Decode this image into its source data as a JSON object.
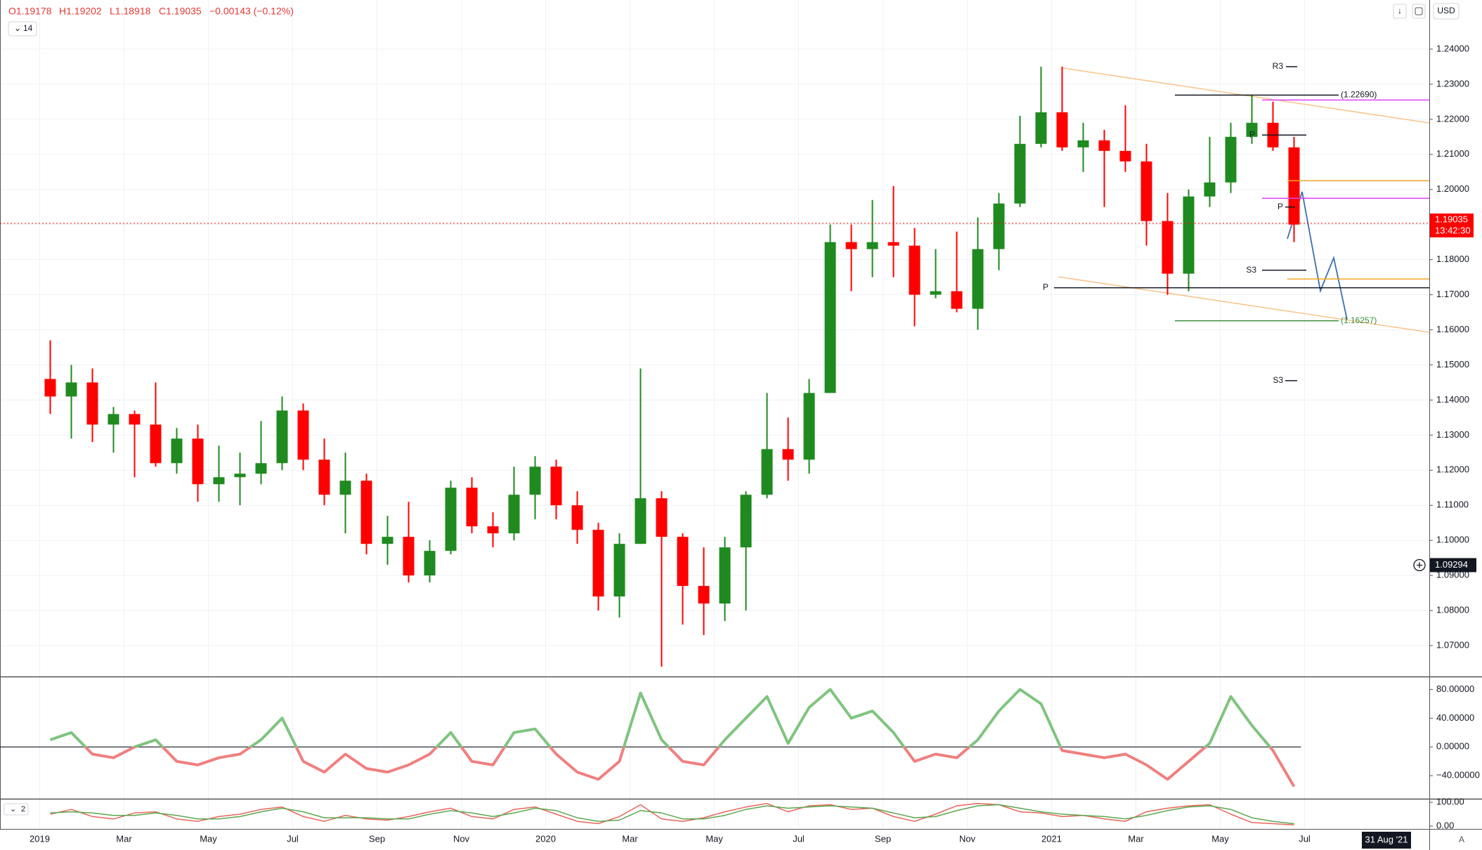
{
  "header": {
    "open": "O1.19178",
    "high": "H1.19202",
    "low": "L1.18918",
    "close": "C1.19035",
    "change": "−0.00143 (−0.12%)",
    "indicator_length": "14",
    "currency": "USD",
    "pane_label": "2",
    "date_label": "31 Aug '21",
    "scale_mode": "A"
  },
  "chart_data": [
    {
      "type": "candlestick",
      "categories": [
        "2019",
        null,
        null,
        null,
        "Mar",
        null,
        null,
        null,
        "May",
        null,
        null,
        null,
        "Jul",
        null,
        null,
        null,
        "Sep",
        null,
        null,
        null,
        "Nov",
        null,
        null,
        null,
        "2020",
        null,
        null,
        null,
        "Mar",
        null,
        null,
        null,
        "May",
        null,
        null,
        null,
        "Jul",
        null,
        null,
        null,
        "Sep",
        null,
        null,
        null,
        "Nov",
        null,
        null,
        null,
        "2021",
        null,
        null,
        null,
        "Mar",
        null,
        null,
        null,
        "May",
        null,
        null,
        null,
        "Jul",
        null
      ],
      "open": [
        1.146,
        1.141,
        1.145,
        1.133,
        1.136,
        1.133,
        1.122,
        1.129,
        1.116,
        1.118,
        1.119,
        1.122,
        1.137,
        1.123,
        1.113,
        1.117,
        1.099,
        1.101,
        1.09,
        1.097,
        1.115,
        1.104,
        1.102,
        1.113,
        1.121,
        1.11,
        1.103,
        1.084,
        1.099,
        1.112,
        1.101,
        1.087,
        1.082,
        1.098,
        1.113,
        1.126,
        1.123,
        1.142,
        1.185,
        1.183,
        1.185,
        1.184,
        1.17,
        1.171,
        1.166,
        1.183,
        1.196,
        1.213,
        1.222,
        1.212,
        1.214,
        1.211,
        1.208,
        1.191,
        1.176,
        1.198,
        1.202,
        1.215,
        1.219,
        1.212,
        null,
        null
      ],
      "high": [
        1.157,
        1.15,
        1.149,
        1.138,
        1.137,
        1.145,
        1.132,
        1.133,
        1.127,
        1.125,
        1.134,
        1.141,
        1.139,
        1.129,
        1.125,
        1.119,
        1.107,
        1.111,
        1.1,
        1.117,
        1.118,
        1.108,
        1.121,
        1.124,
        1.123,
        1.114,
        1.105,
        1.102,
        1.149,
        1.114,
        1.102,
        1.098,
        1.101,
        1.114,
        1.142,
        1.135,
        1.146,
        1.19,
        1.19,
        1.197,
        1.201,
        1.189,
        1.183,
        1.188,
        1.192,
        1.199,
        1.221,
        1.235,
        1.235,
        1.219,
        1.217,
        1.224,
        1.213,
        1.199,
        1.2,
        1.215,
        1.219,
        1.227,
        1.225,
        1.215,
        null,
        null
      ],
      "low": [
        1.136,
        1.129,
        1.128,
        1.125,
        1.118,
        1.121,
        1.119,
        1.111,
        1.111,
        1.11,
        1.116,
        1.12,
        1.12,
        1.11,
        1.102,
        1.096,
        1.093,
        1.088,
        1.088,
        1.096,
        1.102,
        1.098,
        1.1,
        1.106,
        1.106,
        1.099,
        1.08,
        1.078,
        1.099,
        1.064,
        1.076,
        1.073,
        1.077,
        1.08,
        1.112,
        1.117,
        1.119,
        1.142,
        1.171,
        1.175,
        1.175,
        1.161,
        1.169,
        1.165,
        1.16,
        1.177,
        1.195,
        1.212,
        1.211,
        1.205,
        1.195,
        1.205,
        1.184,
        1.17,
        1.171,
        1.195,
        1.199,
        1.213,
        1.211,
        1.185,
        null,
        null
      ],
      "close": [
        1.141,
        1.145,
        1.133,
        1.136,
        1.133,
        1.122,
        1.129,
        1.116,
        1.118,
        1.119,
        1.122,
        1.137,
        1.123,
        1.113,
        1.117,
        1.099,
        1.101,
        1.09,
        1.097,
        1.115,
        1.104,
        1.102,
        1.113,
        1.121,
        1.11,
        1.103,
        1.084,
        1.099,
        1.112,
        1.101,
        1.087,
        1.082,
        1.098,
        1.113,
        1.126,
        1.123,
        1.142,
        1.185,
        1.183,
        1.185,
        1.184,
        1.17,
        1.171,
        1.166,
        1.183,
        1.196,
        1.213,
        1.222,
        1.212,
        1.214,
        1.211,
        1.208,
        1.191,
        1.176,
        1.198,
        1.202,
        1.215,
        1.219,
        1.212,
        1.19,
        null,
        null
      ],
      "up_color": "#1f8a1f",
      "down_color": "#ff0000",
      "ylim": [
        1.0612,
        1.254
      ],
      "yticks": [
        {
          "value": 1.07,
          "label": "1.07000"
        },
        {
          "value": 1.08,
          "label": "1.08000"
        },
        {
          "value": 1.09,
          "label": "1.09000"
        },
        {
          "value": 1.1,
          "label": "1.10000"
        },
        {
          "value": 1.11,
          "label": "1.11000"
        },
        {
          "value": 1.12,
          "label": "1.12000"
        },
        {
          "value": 1.13,
          "label": "1.13000"
        },
        {
          "value": 1.14,
          "label": "1.14000"
        },
        {
          "value": 1.15,
          "label": "1.15000"
        },
        {
          "value": 1.16,
          "label": "1.16000"
        },
        {
          "value": 1.17,
          "label": "1.17000"
        },
        {
          "value": 1.18,
          "label": "1.18000"
        },
        {
          "value": 1.19,
          "label": "1.19000"
        },
        {
          "value": 1.2,
          "label": "1.20000"
        },
        {
          "value": 1.21,
          "label": "1.21000"
        },
        {
          "value": 1.22,
          "label": "1.22000"
        },
        {
          "value": 1.23,
          "label": "1.23000"
        },
        {
          "value": 1.24,
          "label": "1.24000"
        }
      ],
      "grid": true,
      "last_price": 1.19035,
      "countdown": "13:42:30",
      "crosshair": 1.09294,
      "levels": [
        {
          "label": "R3",
          "value": 1.235,
          "color": "#131722"
        },
        {
          "label": "(1.22690)",
          "value": 1.2269,
          "color": "#131722"
        },
        {
          "value": 1.2255,
          "color": "#e040fb"
        },
        {
          "label": "P",
          "value": 1.2155,
          "color": "#131722"
        },
        {
          "value": 1.2025,
          "color": "#f5a623"
        },
        {
          "value": 1.1975,
          "color": "#e040fb"
        },
        {
          "label": "P",
          "value": 1.195,
          "color": "#131722"
        },
        {
          "label": "S3",
          "value": 1.177,
          "color": "#131722"
        },
        {
          "value": 1.1745,
          "color": "#f5a623"
        },
        {
          "label": "P",
          "value": 1.172,
          "color": "#131722"
        },
        {
          "label": "(1.16257)",
          "value": 1.16257,
          "color": "#388e3c"
        },
        {
          "label": "S3",
          "value": 1.1455,
          "color": "#131722"
        }
      ]
    },
    {
      "type": "line",
      "series": [
        {
          "values": [
            10,
            20,
            -10,
            -15,
            0,
            10,
            -20,
            -25,
            -15,
            -10,
            10,
            40,
            -20,
            -35,
            -10,
            -30,
            -35,
            -25,
            -10,
            20,
            -20,
            -25,
            20,
            25,
            -10,
            -35,
            -45,
            -20,
            75,
            10,
            -20,
            -25,
            10,
            40,
            70,
            5,
            55,
            80,
            40,
            50,
            20,
            -20,
            -10,
            -15,
            10,
            50,
            80,
            60,
            -5,
            -10,
            -15,
            -10,
            -25,
            -45,
            -20,
            5,
            70,
            30,
            -5,
            -55,
            null,
            null
          ],
          "color": "#7fc47f",
          "negative_color": "#f07f7f"
        }
      ],
      "ylim": [
        -72,
        97
      ],
      "yticks": [
        {
          "value": 80,
          "label": "80.00000"
        },
        {
          "value": 40,
          "label": "40.00000"
        },
        {
          "value": 0,
          "label": "0.00000"
        },
        {
          "value": -40,
          "label": "−40.00000"
        }
      ]
    },
    {
      "type": "line",
      "series": [
        {
          "values": [
            50,
            70,
            40,
            30,
            55,
            60,
            30,
            20,
            40,
            50,
            70,
            80,
            40,
            20,
            45,
            30,
            25,
            40,
            60,
            75,
            40,
            30,
            70,
            80,
            50,
            20,
            10,
            40,
            90,
            30,
            20,
            35,
            60,
            80,
            95,
            60,
            85,
            90,
            70,
            75,
            40,
            20,
            50,
            85,
            95,
            90,
            60,
            55,
            40,
            45,
            30,
            20,
            60,
            75,
            85,
            90,
            50,
            15,
            10,
            5,
            null,
            null
          ],
          "color": "#e8645a"
        },
        {
          "values": [
            55,
            60,
            55,
            45,
            45,
            55,
            45,
            30,
            30,
            40,
            60,
            75,
            60,
            35,
            35,
            35,
            30,
            30,
            50,
            65,
            55,
            40,
            55,
            75,
            65,
            35,
            20,
            25,
            65,
            55,
            30,
            30,
            45,
            70,
            85,
            75,
            80,
            85,
            80,
            75,
            55,
            35,
            40,
            65,
            85,
            90,
            75,
            60,
            50,
            45,
            40,
            30,
            45,
            65,
            80,
            85,
            70,
            35,
            20,
            10,
            null,
            null
          ],
          "color": "#5aa84f"
        }
      ],
      "ylim": [
        -12,
        112
      ],
      "yticks": [
        {
          "value": 100,
          "label": "100.00"
        },
        {
          "value": 0,
          "label": "0.00"
        }
      ]
    }
  ]
}
